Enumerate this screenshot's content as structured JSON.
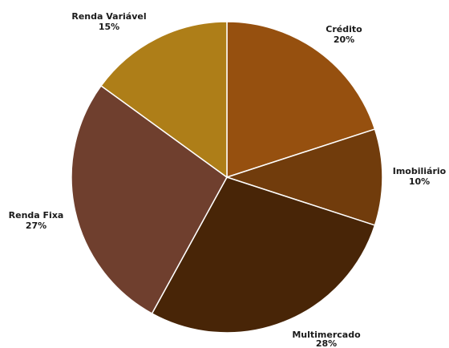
{
  "chart_data": {
    "type": "pie",
    "start_angle_deg": 0,
    "direction": "clockwise",
    "legend": "none",
    "slices": [
      {
        "label": "Crédito",
        "value": 20,
        "value_label": "20%",
        "color": "#96500f"
      },
      {
        "label": "Imobiliário",
        "value": 10,
        "value_label": "10%",
        "color": "#713c0c"
      },
      {
        "label": "Multimercado",
        "value": 28,
        "value_label": "28%",
        "color": "#482507"
      },
      {
        "label": "Renda Fixa",
        "value": 27,
        "value_label": "27%",
        "color": "#6f3f2e"
      },
      {
        "label": "Renda Variável",
        "value": 15,
        "value_label": "15%",
        "color": "#ae7e18"
      }
    ]
  }
}
